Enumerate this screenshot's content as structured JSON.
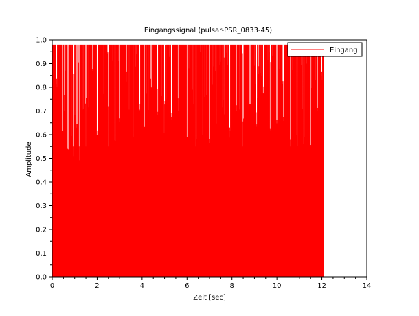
{
  "chart_data": {
    "type": "line",
    "title": "Eingangssignal (pulsar-PSR_0833-45)",
    "xlabel": "Zeit [sec]",
    "ylabel": "Amplitude",
    "xlim": [
      0,
      14
    ],
    "ylim": [
      0,
      1.0
    ],
    "x_ticks": [
      "0",
      "2",
      "4",
      "6",
      "8",
      "10",
      "12",
      "14"
    ],
    "y_ticks": [
      "0.0",
      "0.1",
      "0.2",
      "0.3",
      "0.4",
      "0.5",
      "0.6",
      "0.7",
      "0.8",
      "0.9",
      "1.0"
    ],
    "grid": false,
    "legend_position": "top-right",
    "series": [
      {
        "name": "Eingang",
        "color": "#ff0000",
        "x_range": [
          0,
          12.1
        ],
        "envelope": {
          "max": 0.98,
          "min": 0.0,
          "upper_dips": [
            [
              0.2,
              0.8
            ],
            [
              0.45,
              0.6
            ],
            [
              0.55,
              0.74
            ],
            [
              0.7,
              0.52
            ],
            [
              0.85,
              0.56
            ],
            [
              0.95,
              0.49
            ],
            [
              1.1,
              0.6
            ],
            [
              1.2,
              0.48
            ],
            [
              1.5,
              0.72
            ],
            [
              1.8,
              0.85
            ],
            [
              2.0,
              0.59
            ],
            [
              2.3,
              0.76
            ],
            [
              2.5,
              0.67
            ],
            [
              2.8,
              0.57
            ],
            [
              3.0,
              0.63
            ],
            [
              3.3,
              0.82
            ],
            [
              3.6,
              0.58
            ],
            [
              3.9,
              0.7
            ],
            [
              4.1,
              0.62
            ],
            [
              4.4,
              0.79
            ],
            [
              4.7,
              0.66
            ],
            [
              5.0,
              0.71
            ],
            [
              5.3,
              0.65
            ],
            [
              5.6,
              0.73
            ],
            [
              6.0,
              0.56
            ],
            [
              6.4,
              0.54
            ],
            [
              6.7,
              0.57
            ],
            [
              7.0,
              0.55
            ],
            [
              7.3,
              0.62
            ],
            [
              7.6,
              0.7
            ],
            [
              7.9,
              0.58
            ],
            [
              8.2,
              0.7
            ],
            [
              8.5,
              0.65
            ],
            [
              8.8,
              0.68
            ],
            [
              9.1,
              0.6
            ],
            [
              9.4,
              0.77
            ],
            [
              9.7,
              0.59
            ],
            [
              10.0,
              0.64
            ],
            [
              10.3,
              0.65
            ],
            [
              10.6,
              0.53
            ],
            [
              10.9,
              0.55
            ],
            [
              11.2,
              0.56
            ],
            [
              11.5,
              0.52
            ],
            [
              11.8,
              0.68
            ],
            [
              12.0,
              0.82
            ]
          ]
        }
      }
    ]
  }
}
